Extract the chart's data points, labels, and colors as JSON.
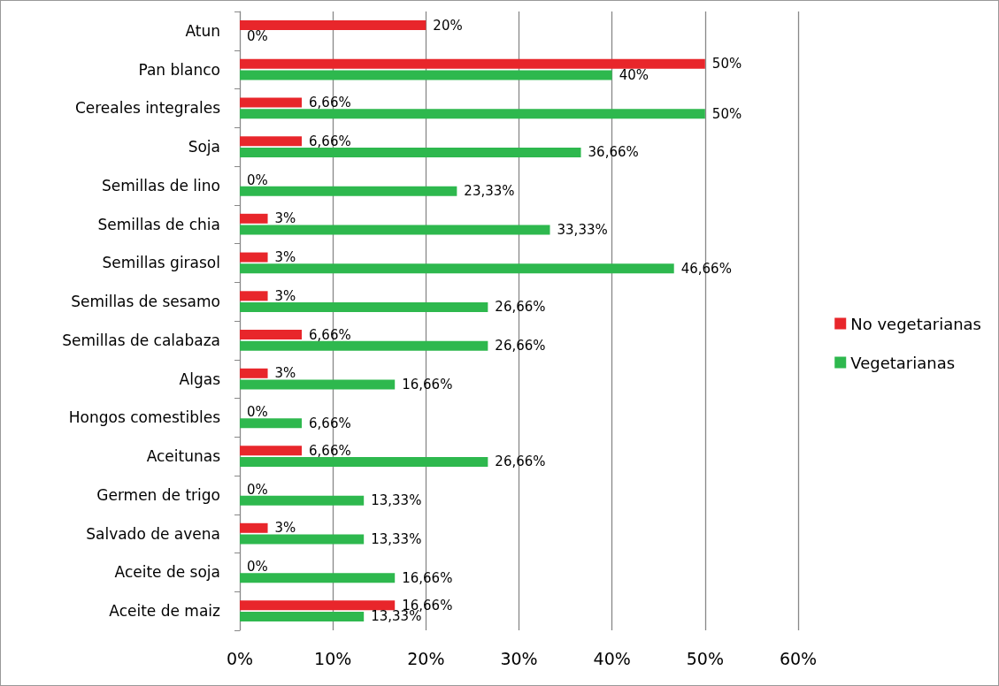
{
  "chart_data": {
    "type": "bar",
    "orientation": "horizontal",
    "categories": [
      "Atun",
      "Pan blanco",
      "Cereales integrales",
      "Soja",
      "Semillas de lino",
      "Semillas de chia",
      "Semillas girasol",
      "Semillas de sesamo",
      "Semillas de calabaza",
      "Algas",
      "Hongos comestibles",
      "Aceitunas",
      "Germen de trigo",
      "Salvado de avena",
      "Aceite de soja",
      "Aceite de maiz"
    ],
    "series": [
      {
        "name": "No vegetarianas",
        "color": "#e8262b",
        "values": [
          20,
          50,
          6.66,
          6.66,
          0,
          3,
          3,
          3,
          6.66,
          3,
          0,
          6.66,
          0,
          3,
          0,
          16.66
        ],
        "value_labels": [
          "20%",
          "50%",
          "6,66%",
          "6,66%",
          "0%",
          "3%",
          "3%",
          "3%",
          "6,66%",
          "3%",
          "0%",
          "6,66%",
          "0%",
          "3%",
          "0%",
          "16,66%"
        ]
      },
      {
        "name": "Vegetarianas",
        "color": "#2eb84e",
        "values": [
          0,
          40,
          50,
          36.66,
          23.33,
          33.33,
          46.66,
          26.66,
          26.66,
          16.66,
          6.66,
          26.66,
          13.33,
          13.33,
          16.66,
          13.33
        ],
        "value_labels": [
          "0%",
          "40%",
          "50%",
          "36,66%",
          "23,33%",
          "33,33%",
          "46,66%",
          "26,66%",
          "26,66%",
          "16,66%",
          "6,66%",
          "26,66%",
          "13,33%",
          "13,33%",
          "16,66%",
          "13,33%"
        ]
      }
    ],
    "xlim": [
      0,
      60
    ],
    "xticks": [
      {
        "value": 0,
        "label": "0%"
      },
      {
        "value": 10,
        "label": "10%"
      },
      {
        "value": 20,
        "label": "20%"
      },
      {
        "value": 30,
        "label": "30%"
      },
      {
        "value": 40,
        "label": "40%"
      },
      {
        "value": 50,
        "label": "50%"
      },
      {
        "value": 60,
        "label": "60%"
      }
    ],
    "grid": "x",
    "legend": "right"
  }
}
